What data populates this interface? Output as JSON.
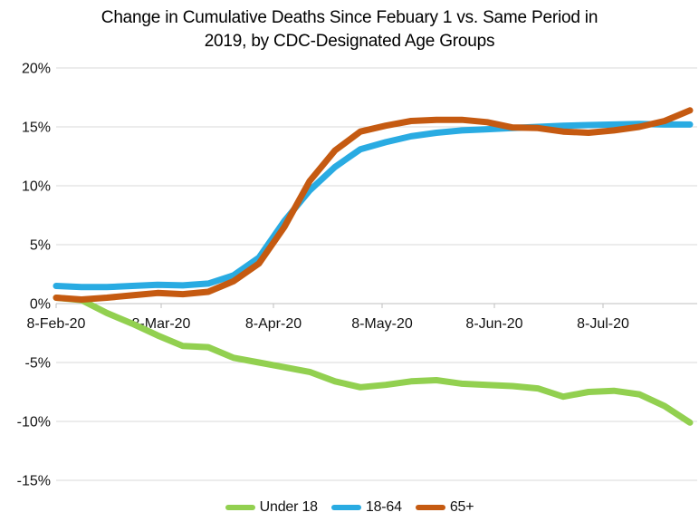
{
  "title": {
    "line1": "Change in Cumulative Deaths Since Febuary 1 vs. Same Period in",
    "line2": "2019, by CDC-Designated Age Groups"
  },
  "colors": {
    "under_18": "#92D050",
    "age_18_64": "#29ABE2",
    "age_65_plus": "#C55A11",
    "gridline": "#D9D9D9",
    "axis_line": "#BFBFBF",
    "text": "#121212"
  },
  "chart_data": {
    "type": "line",
    "title": "Change in Cumulative Deaths Since Febuary 1 vs. Same Period in 2019, by CDC-Designated Age Groups",
    "xlabel": "",
    "ylabel": "",
    "y_unit": "%",
    "ylim": [
      -15,
      20
    ],
    "grid": "horizontal",
    "legend_position": "bottom",
    "y_ticks": [
      {
        "label": "20%",
        "value": 20
      },
      {
        "label": "15%",
        "value": 15
      },
      {
        "label": "10%",
        "value": 10
      },
      {
        "label": "5%",
        "value": 5
      },
      {
        "label": "0%",
        "value": 0
      },
      {
        "label": "-5%",
        "value": -5
      },
      {
        "label": "-10%",
        "value": -10
      },
      {
        "label": "-15%",
        "value": -15
      }
    ],
    "x_ticks": [
      {
        "label": "8-Feb-20",
        "day": 0
      },
      {
        "label": "8-Mar-20",
        "day": 29
      },
      {
        "label": "8-Apr-20",
        "day": 60
      },
      {
        "label": "8-May-20",
        "day": 90
      },
      {
        "label": "8-Jun-20",
        "day": 121
      },
      {
        "label": "8-Jul-20",
        "day": 151
      }
    ],
    "x_dates": [
      "2020-02-08",
      "2020-02-15",
      "2020-02-22",
      "2020-02-29",
      "2020-03-07",
      "2020-03-14",
      "2020-03-21",
      "2020-03-28",
      "2020-04-04",
      "2020-04-11",
      "2020-04-18",
      "2020-04-25",
      "2020-05-02",
      "2020-05-09",
      "2020-05-16",
      "2020-05-23",
      "2020-05-30",
      "2020-06-06",
      "2020-06-13",
      "2020-06-20",
      "2020-06-27",
      "2020-07-04",
      "2020-07-11",
      "2020-07-18",
      "2020-07-25",
      "2020-08-01"
    ],
    "series": [
      {
        "name": "Under 18",
        "color": "#92D050",
        "values": [
          0.5,
          0.3,
          -0.8,
          -1.7,
          -2.7,
          -3.6,
          -3.7,
          -4.6,
          -5.0,
          -5.4,
          -5.8,
          -6.6,
          -7.1,
          -6.9,
          -6.6,
          -6.5,
          -6.8,
          -6.9,
          -7.0,
          -7.2,
          -7.9,
          -7.5,
          -7.4,
          -7.7,
          -8.7,
          -10.1
        ]
      },
      {
        "name": "18-64",
        "color": "#29ABE2",
        "values": [
          1.5,
          1.4,
          1.4,
          1.5,
          1.6,
          1.55,
          1.7,
          2.4,
          3.9,
          7.0,
          9.6,
          11.6,
          13.1,
          13.7,
          14.2,
          14.5,
          14.7,
          14.8,
          14.9,
          15.0,
          15.1,
          15.15,
          15.2,
          15.25,
          15.2,
          15.2
        ]
      },
      {
        "name": "65+",
        "color": "#C55A11",
        "values": [
          0.5,
          0.35,
          0.5,
          0.7,
          0.9,
          0.8,
          1.0,
          1.9,
          3.4,
          6.5,
          10.4,
          13.0,
          14.6,
          15.1,
          15.5,
          15.6,
          15.6,
          15.4,
          14.95,
          14.9,
          14.6,
          14.5,
          14.7,
          15.0,
          15.5,
          16.4
        ]
      }
    ]
  },
  "legend": {
    "items": [
      "Under 18",
      "18-64",
      "65+"
    ]
  }
}
